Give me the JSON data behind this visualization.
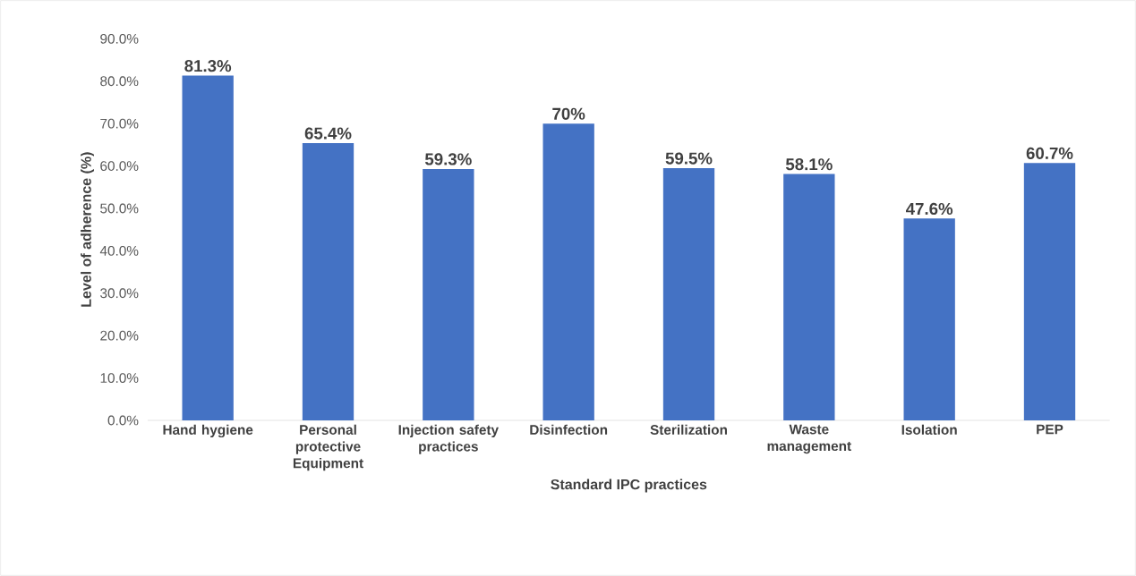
{
  "chart_data": {
    "type": "bar",
    "xlabel": "Standard IPC practices",
    "ylabel": "Level of adherence (%)",
    "categories": [
      "Hand hygiene",
      "Personal protective Equipment",
      "Injection safety practices",
      "Disinfection",
      "Sterilization",
      "Waste management",
      "Isolation",
      "PEP"
    ],
    "values": [
      81.3,
      65.4,
      59.3,
      70,
      59.5,
      58.1,
      47.6,
      60.7
    ],
    "value_labels": [
      "81.3%",
      "65.4%",
      "59.3%",
      "70%",
      "59.5%",
      "58.1%",
      "47.6%",
      "60.7%"
    ],
    "color": "#4472c4",
    "ylim": [
      0,
      90
    ],
    "yticks": [
      {
        "value": 0,
        "label": "0.0%"
      },
      {
        "value": 10,
        "label": "10.0%"
      },
      {
        "value": 20,
        "label": "20.0%"
      },
      {
        "value": 30,
        "label": "30.0%"
      },
      {
        "value": 40,
        "label": "40.0%"
      },
      {
        "value": 50,
        "label": "50.0%"
      },
      {
        "value": 60,
        "label": "60.0%"
      },
      {
        "value": 70,
        "label": "70.0%"
      },
      {
        "value": 80,
        "label": "80.0%"
      },
      {
        "value": 90,
        "label": "90.0%"
      }
    ]
  }
}
